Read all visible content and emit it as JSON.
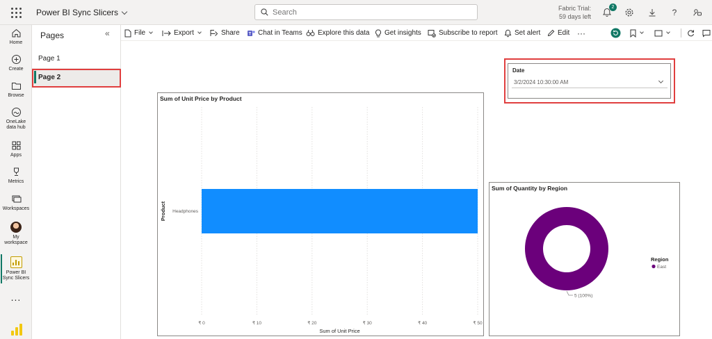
{
  "app": {
    "title": "Power BI Sync Slicers"
  },
  "search": {
    "placeholder": "Search"
  },
  "trial": {
    "line1": "Fabric Trial:",
    "line2": "59 days left"
  },
  "notifications": {
    "count": "2"
  },
  "leftnav": {
    "items": [
      {
        "label": "Home",
        "icon": "home-icon"
      },
      {
        "label": "Create",
        "icon": "plus-circle-icon"
      },
      {
        "label": "Browse",
        "icon": "folder-icon"
      },
      {
        "label": "OneLake data hub",
        "icon": "onelake-icon"
      },
      {
        "label": "Apps",
        "icon": "apps-icon"
      },
      {
        "label": "Metrics",
        "icon": "trophy-icon"
      },
      {
        "label": "Workspaces",
        "icon": "workspaces-icon"
      },
      {
        "label": "My workspace",
        "icon": "avatar-icon"
      },
      {
        "label": "Power BI Sync Slicers",
        "icon": "report-icon"
      }
    ],
    "more": "..."
  },
  "pages": {
    "title": "Pages",
    "collapse": "«",
    "items": [
      {
        "label": "Page 1",
        "active": false
      },
      {
        "label": "Page 2",
        "active": true
      }
    ]
  },
  "toolbar": {
    "file": "File",
    "export": "Export",
    "share": "Share",
    "chat": "Chat in Teams",
    "explore": "Explore this data",
    "insights": "Get insights",
    "subscribe": "Subscribe to report",
    "alert": "Set alert",
    "edit": "Edit",
    "more": "···"
  },
  "slicer": {
    "title": "Date",
    "value": "3/2/2024 10:30:00 AM"
  },
  "colors": {
    "accent": "#117865",
    "bar": "#118dff",
    "donut": "#6b007b",
    "highlight": "#e03e3e"
  },
  "chart_data": [
    {
      "type": "bar",
      "orientation": "horizontal",
      "title": "Sum of Unit Price by Product",
      "xlabel": "Sum of Unit Price",
      "ylabel": "Product",
      "categories": [
        "Headphones"
      ],
      "values": [
        50
      ],
      "xlim": [
        0,
        50
      ],
      "xticks": [
        "₹ 0",
        "₹ 10",
        "₹ 20",
        "₹ 30",
        "₹ 40",
        "₹ 50"
      ],
      "grid": true
    },
    {
      "type": "pie",
      "variant": "donut",
      "title": "Sum of Quantity by Region",
      "legend_title": "Region",
      "legend_position": "right",
      "categories": [
        "East"
      ],
      "values": [
        5
      ],
      "data_labels": [
        "5 (100%)"
      ]
    }
  ]
}
